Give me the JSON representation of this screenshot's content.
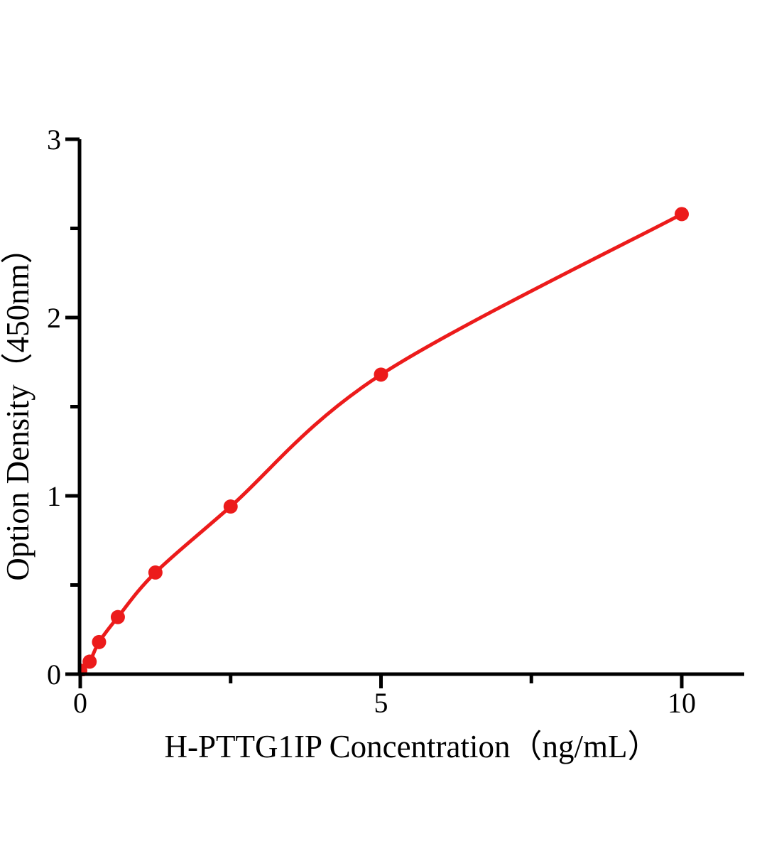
{
  "chart_data": {
    "type": "scatter",
    "title": "",
    "xlabel": "H-PTTG1IP Concentration（ng/mL）",
    "ylabel": "Option Density（450nm）",
    "x": [
      0,
      0.156,
      0.3125,
      0.625,
      1.25,
      2.5,
      5,
      10
    ],
    "y": [
      0.02,
      0.07,
      0.18,
      0.32,
      0.57,
      0.94,
      1.68,
      2.58
    ],
    "xlim": [
      0,
      11
    ],
    "ylim": [
      0,
      3
    ],
    "x_major_ticks": [
      0,
      5,
      10
    ],
    "x_major_tick_labels": [
      "0",
      "5",
      "10"
    ],
    "x_minor_ticks": [
      2.5,
      7.5
    ],
    "y_major_ticks": [
      0,
      1,
      2,
      3
    ],
    "y_major_tick_labels": [
      "0",
      "1",
      "2",
      "3"
    ],
    "y_minor_ticks": [
      0.5,
      1.5,
      2.5
    ],
    "grid": false,
    "legend": "none",
    "curve": "smooth-through-points",
    "marker": "filled-circle",
    "series_color": "#ec1b1b",
    "axis_color": "#000000",
    "background_color": "#ffffff"
  }
}
